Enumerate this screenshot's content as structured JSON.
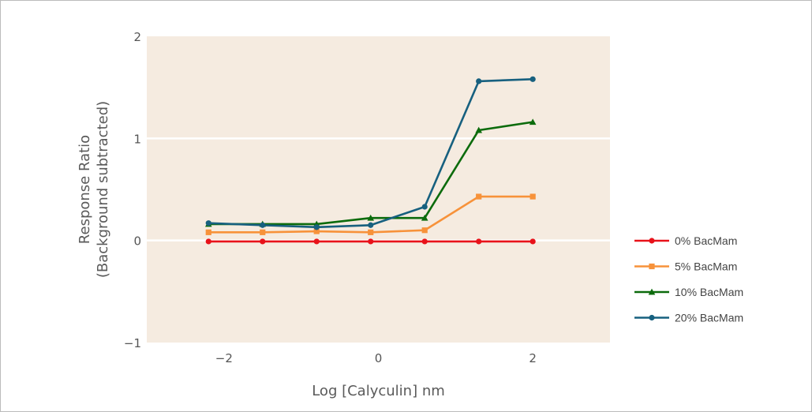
{
  "chart_data": {
    "type": "line",
    "title": "",
    "xlabel": "Log [Calyculin] nm",
    "ylabel_line1": "Response Ratio",
    "ylabel_line2": "(Background subtracted)",
    "xlim": [
      -3,
      3
    ],
    "ylim": [
      -1,
      2
    ],
    "xticks": [
      -2,
      0,
      2
    ],
    "yticks": [
      -1,
      0,
      1,
      2
    ],
    "xtick_labels": [
      "−2",
      "0",
      "2"
    ],
    "ytick_labels": [
      "−1",
      "0",
      "1",
      "2"
    ],
    "plot_background": "#f5ebe0",
    "grid": "horizontal white",
    "legend_position": "right",
    "x": [
      -2.2,
      -1.5,
      -0.8,
      -0.1,
      0.6,
      1.3,
      2.0
    ],
    "series": [
      {
        "name": "0% BacMam",
        "color": "#e8121a",
        "marker": "circle",
        "values": [
          -0.01,
          -0.01,
          -0.01,
          -0.01,
          -0.01,
          -0.01,
          -0.01
        ]
      },
      {
        "name": "5% BacMam",
        "color": "#f7923a",
        "marker": "square",
        "values": [
          0.08,
          0.08,
          0.09,
          0.08,
          0.1,
          0.43,
          0.43
        ]
      },
      {
        "name": "10% BacMam",
        "color": "#0c6b0c",
        "marker": "triangle",
        "values": [
          0.16,
          0.16,
          0.16,
          0.22,
          0.22,
          1.08,
          1.16
        ]
      },
      {
        "name": "20% BacMam",
        "color": "#17607f",
        "marker": "circle",
        "values": [
          0.17,
          0.15,
          0.13,
          0.15,
          0.33,
          1.56,
          1.58
        ]
      }
    ]
  }
}
